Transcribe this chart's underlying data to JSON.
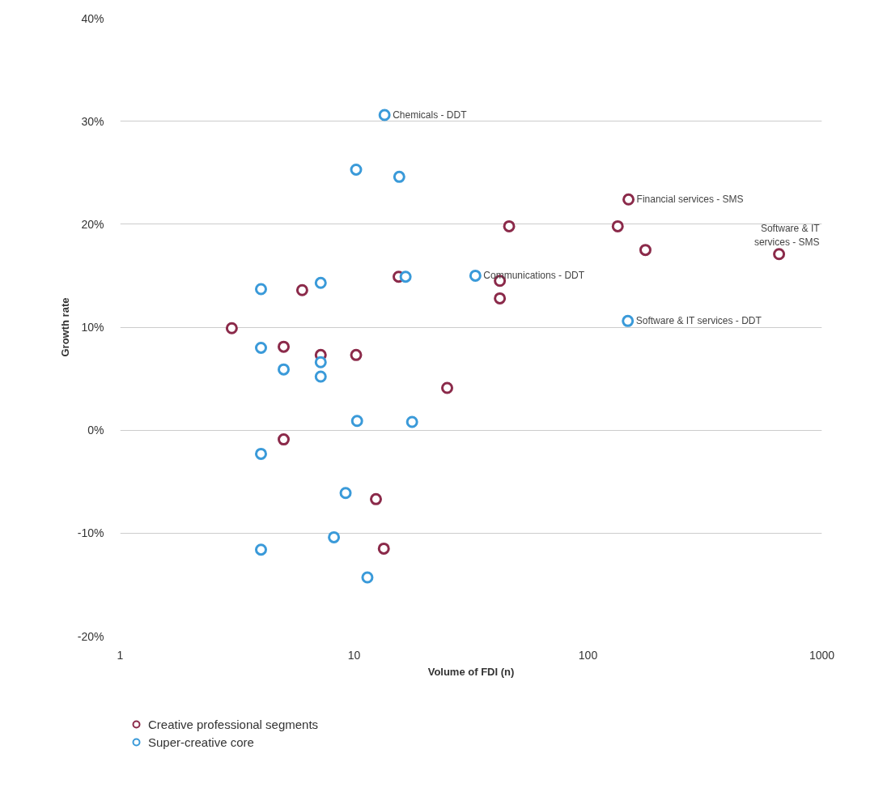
{
  "chart_data": {
    "type": "scatter",
    "xlabel": "Volume of FDI (n)",
    "ylabel": "Growth rate",
    "log": "x",
    "grid": "y",
    "legend": "bottom left",
    "marker": "circle",
    "xlim": [
      1,
      1000
    ],
    "xticks": [
      1,
      10,
      100,
      1000
    ],
    "ylim": [
      -20,
      40
    ],
    "yticks": [
      {
        "value": -20,
        "label": "-20%"
      },
      {
        "value": -10,
        "label": "-10%"
      },
      {
        "value": 0,
        "label": "0%"
      },
      {
        "value": 10,
        "label": "10%"
      },
      {
        "value": 20,
        "label": "20%"
      },
      {
        "value": 30,
        "label": "30%"
      },
      {
        "value": 40,
        "label": "40%"
      }
    ],
    "series": [
      {
        "name": "Creative professional segments",
        "color": "#8b2a4a",
        "x": [
          149,
          46,
          134,
          176,
          656,
          15.5,
          42,
          42,
          6,
          3,
          5,
          7.2,
          10.2,
          25,
          5,
          12.4,
          13.4
        ],
        "values": [
          22.4,
          19.8,
          19.8,
          17.5,
          17.1,
          14.9,
          14.5,
          12.8,
          13.6,
          9.9,
          8.1,
          7.3,
          7.3,
          4.1,
          -0.9,
          -6.7,
          -11.5
        ]
      },
      {
        "name": "Super-creative core",
        "color": "#3a9ad9",
        "x": [
          13.5,
          10.2,
          15.6,
          16.6,
          33,
          4,
          7.2,
          148,
          4,
          5,
          7.2,
          7.2,
          10.3,
          17.7,
          4,
          9.2,
          8.2,
          4,
          11.4
        ],
        "values": [
          30.6,
          25.3,
          24.6,
          14.9,
          15.0,
          13.7,
          14.3,
          10.6,
          8.0,
          5.9,
          6.6,
          5.2,
          0.9,
          0.8,
          -2.3,
          -6.1,
          -10.4,
          -11.6,
          -14.3
        ]
      }
    ],
    "annotations": [
      {
        "text": "Chemicals - DDT",
        "x": 13.5,
        "y": 30.6
      },
      {
        "text": "Financial services - SMS",
        "x": 149,
        "y": 22.4
      },
      {
        "text": "Software & IT\nservices - SMS",
        "x": 656,
        "y": 17.1
      },
      {
        "text": "Communications - DDT",
        "x": 33,
        "y": 15.0
      },
      {
        "text": "Software & IT services - DDT",
        "x": 148,
        "y": 10.6
      }
    ]
  }
}
